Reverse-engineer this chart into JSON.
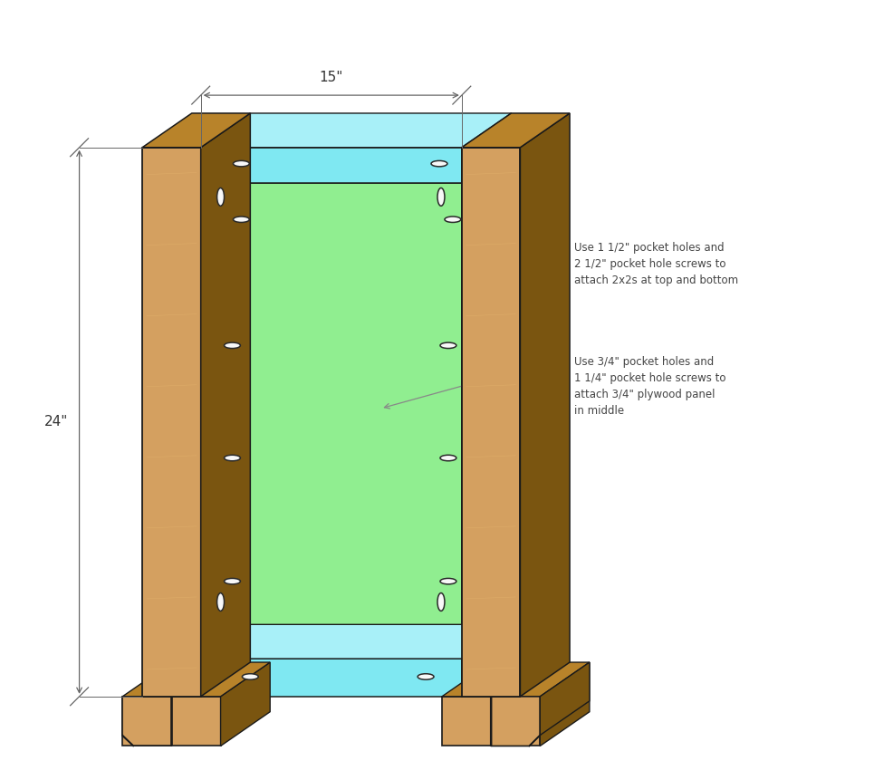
{
  "bg_color": "#ffffff",
  "wood_light": "#D4A060",
  "wood_mid": "#B8832A",
  "wood_dark": "#7A5510",
  "wood_edge": "#5A3A08",
  "cyan_front": "#7FE8F2",
  "cyan_side": "#50C8D8",
  "cyan_top": "#A8F0F8",
  "green_front": "#90EE90",
  "green_side": "#60CC60",
  "outline": "#1a1a1a",
  "dim_color": "#666666",
  "ann_color": "#888888",
  "fig_width": 9.65,
  "fig_height": 8.61,
  "width_label": "15\"",
  "height_label": "24\"",
  "ann1": "Use 1 1/2\" pocket holes and\n2 1/2\" pocket hole screws to\nattach 2x2s at top and bottom",
  "ann2": "Use 3/4\" pocket holes and\n1 1/4\" pocket hole screws to\nattach 3/4\" plywood panel\nin middle"
}
